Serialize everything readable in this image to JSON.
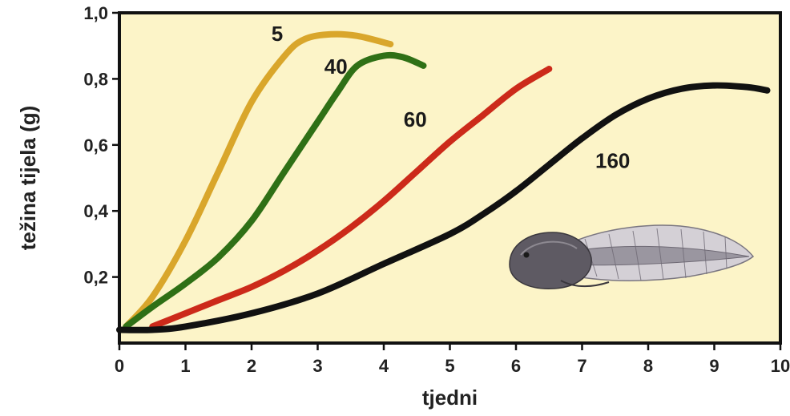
{
  "chart_data": {
    "type": "line",
    "title": "",
    "xlabel": "tjedni",
    "ylabel": "težina tijela (g)",
    "xlim": [
      0,
      10
    ],
    "ylim": [
      0,
      1.0
    ],
    "x_ticks": [
      0,
      1,
      2,
      3,
      4,
      5,
      6,
      7,
      8,
      9,
      10
    ],
    "x_tick_labels": [
      "0",
      "1",
      "2",
      "3",
      "4",
      "5",
      "6",
      "7",
      "8",
      "9",
      "10"
    ],
    "y_ticks": [
      0.2,
      0.4,
      0.6,
      0.8,
      1.0
    ],
    "y_tick_labels": [
      "0,2",
      "0,4",
      "0,6",
      "0,8",
      "1,0"
    ],
    "grid": false,
    "background_color": "#fcf4c8",
    "series": [
      {
        "name": "5",
        "color": "#d9a62b",
        "x": [
          0.1,
          0.5,
          1.0,
          1.5,
          2.0,
          2.5,
          2.8,
          3.2,
          3.6,
          4.1
        ],
        "y": [
          0.05,
          0.14,
          0.31,
          0.52,
          0.73,
          0.87,
          0.92,
          0.935,
          0.93,
          0.905
        ]
      },
      {
        "name": "40",
        "color": "#2f7016",
        "x": [
          0.1,
          0.5,
          1.0,
          1.5,
          2.0,
          2.5,
          3.0,
          3.3,
          3.6,
          4.0,
          4.3,
          4.6
        ],
        "y": [
          0.05,
          0.11,
          0.18,
          0.26,
          0.37,
          0.52,
          0.67,
          0.76,
          0.84,
          0.87,
          0.865,
          0.84
        ]
      },
      {
        "name": "60",
        "color": "#cc2a1a",
        "x": [
          0.5,
          1.0,
          1.5,
          2.0,
          2.5,
          3.0,
          3.5,
          4.0,
          4.5,
          5.0,
          5.5,
          6.0,
          6.5
        ],
        "y": [
          0.05,
          0.09,
          0.13,
          0.17,
          0.22,
          0.28,
          0.35,
          0.43,
          0.52,
          0.61,
          0.69,
          0.77,
          0.83
        ]
      },
      {
        "name": "160",
        "color": "#111111",
        "x": [
          0.0,
          0.5,
          1.0,
          2.0,
          3.0,
          4.0,
          5.0,
          5.5,
          6.0,
          6.5,
          7.0,
          7.5,
          8.0,
          8.5,
          9.0,
          9.5,
          9.8
        ],
        "y": [
          0.04,
          0.04,
          0.05,
          0.09,
          0.15,
          0.24,
          0.33,
          0.39,
          0.46,
          0.54,
          0.62,
          0.69,
          0.74,
          0.77,
          0.78,
          0.775,
          0.765
        ]
      }
    ],
    "series_label_positions": [
      {
        "x": 2.3,
        "y": 0.915
      },
      {
        "x": 3.1,
        "y": 0.815
      },
      {
        "x": 4.3,
        "y": 0.655
      },
      {
        "x": 7.2,
        "y": 0.53
      }
    ]
  },
  "image": {
    "icon": "tadpole-icon"
  }
}
